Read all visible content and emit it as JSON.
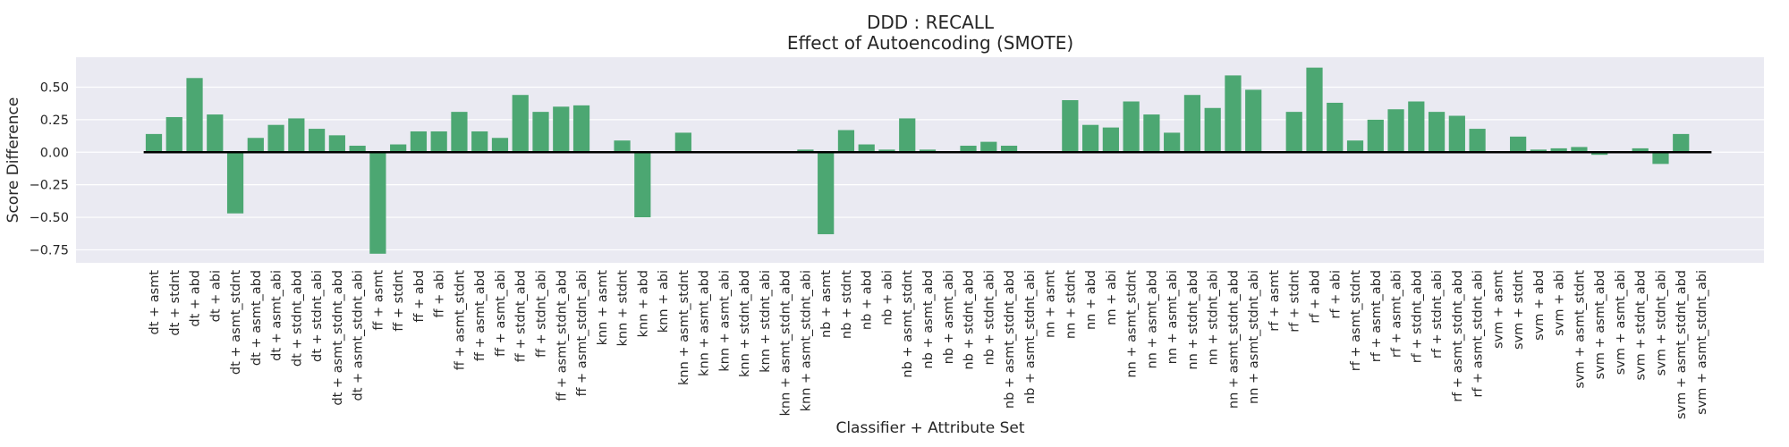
{
  "chart_data": {
    "type": "bar",
    "title": "DDD : RECALL",
    "subtitle": "Effect of Autoencoding (SMOTE)",
    "xlabel": "Classifier + Attribute Set",
    "ylabel": "Score Difference",
    "ylim": [
      -0.85,
      0.73
    ],
    "yticks": [
      -0.75,
      -0.5,
      -0.25,
      0.0,
      0.25,
      0.5
    ],
    "ytick_labels": [
      "−0.75",
      "−0.50",
      "−0.25",
      "0.00",
      "0.25",
      "0.50"
    ],
    "grid": true,
    "bar_color": "#4ca772",
    "background_color": "#eaeaf2",
    "zero_line_color": "#000000",
    "categories": [
      "dt + asmt",
      "dt + stdnt",
      "dt + abd",
      "dt + abi",
      "dt + asmt_stdnt",
      "dt + asmt_abd",
      "dt + asmt_abi",
      "dt + stdnt_abd",
      "dt + stdnt_abi",
      "dt + asmt_stdnt_abd",
      "dt + asmt_stdnt_abi",
      "ff + asmt",
      "ff + stdnt",
      "ff + abd",
      "ff + abi",
      "ff + asmt_stdnt",
      "ff + asmt_abd",
      "ff + asmt_abi",
      "ff + stdnt_abd",
      "ff + stdnt_abi",
      "ff + asmt_stdnt_abd",
      "ff + asmt_stdnt_abi",
      "knn + asmt",
      "knn + stdnt",
      "knn + abd",
      "knn + abi",
      "knn + asmt_stdnt",
      "knn + asmt_abd",
      "knn + asmt_abi",
      "knn + stdnt_abd",
      "knn + stdnt_abi",
      "knn + asmt_stdnt_abd",
      "knn + asmt_stdnt_abi",
      "nb + asmt",
      "nb + stdnt",
      "nb + abd",
      "nb + abi",
      "nb + asmt_stdnt",
      "nb + asmt_abd",
      "nb + asmt_abi",
      "nb + stdnt_abd",
      "nb + stdnt_abi",
      "nb + asmt_stdnt_abd",
      "nb + asmt_stdnt_abi",
      "nn + asmt",
      "nn + stdnt",
      "nn + abd",
      "nn + abi",
      "nn + asmt_stdnt",
      "nn + asmt_abd",
      "nn + asmt_abi",
      "nn + stdnt_abd",
      "nn + stdnt_abi",
      "nn + asmt_stdnt_abd",
      "nn + asmt_stdnt_abi",
      "rf + asmt",
      "rf + stdnt",
      "rf + abd",
      "rf + abi",
      "rf + asmt_stdnt",
      "rf + asmt_abd",
      "rf + asmt_abi",
      "rf + stdnt_abd",
      "rf + stdnt_abi",
      "rf + asmt_stdnt_abd",
      "rf + asmt_stdnt_abi",
      "svm + asmt",
      "svm + stdnt",
      "svm + abd",
      "svm + abi",
      "svm + asmt_stdnt",
      "svm + asmt_abd",
      "svm + asmt_abi",
      "svm + stdnt_abd",
      "svm + stdnt_abi",
      "svm + asmt_stdnt_abd",
      "svm + asmt_stdnt_abi"
    ],
    "values": [
      0.14,
      0.27,
      0.57,
      0.29,
      -0.47,
      0.11,
      0.21,
      0.26,
      0.18,
      0.13,
      0.05,
      -0.78,
      0.06,
      0.16,
      0.16,
      0.31,
      0.16,
      0.11,
      0.44,
      0.31,
      0.35,
      0.36,
      0.0,
      0.09,
      -0.5,
      0.0,
      0.15,
      0.0,
      0.0,
      0.0,
      0.0,
      0.0,
      0.02,
      -0.63,
      0.17,
      0.06,
      0.02,
      0.26,
      0.02,
      0.0,
      0.05,
      0.08,
      0.05,
      0.0,
      0.0,
      0.4,
      0.21,
      0.19,
      0.39,
      0.29,
      0.15,
      0.44,
      0.34,
      0.59,
      0.48,
      0.0,
      0.31,
      0.65,
      0.38,
      0.09,
      0.25,
      0.33,
      0.39,
      0.31,
      0.28,
      0.18,
      0.0,
      0.12,
      0.02,
      0.03,
      0.04,
      -0.02,
      0.0,
      0.03,
      -0.09,
      0.14,
      0.0
    ]
  }
}
